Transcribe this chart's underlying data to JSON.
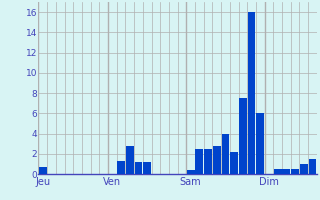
{
  "bar_values": [
    0.7,
    0,
    0,
    0,
    0,
    0,
    0,
    0,
    0,
    1.3,
    2.8,
    1.2,
    1.2,
    0,
    0,
    0,
    0,
    0.4,
    2.5,
    2.5,
    2.8,
    4.0,
    2.2,
    7.5,
    16.0,
    6.0,
    0,
    0.5,
    0.5,
    0.5,
    1.0,
    1.5
  ],
  "n_bars": 32,
  "day_positions": [
    0,
    8,
    17,
    26
  ],
  "day_labels": [
    "Jeu",
    "Ven",
    "Sam",
    "Dim"
  ],
  "ylim": [
    0,
    17
  ],
  "yticks": [
    0,
    2,
    4,
    6,
    8,
    10,
    12,
    14,
    16
  ],
  "bar_color": "#0044cc",
  "bg_color": "#d8f4f4",
  "grid_color": "#b0b0b0",
  "label_color": "#4444bb",
  "figsize": [
    3.2,
    2.0
  ],
  "dpi": 100
}
